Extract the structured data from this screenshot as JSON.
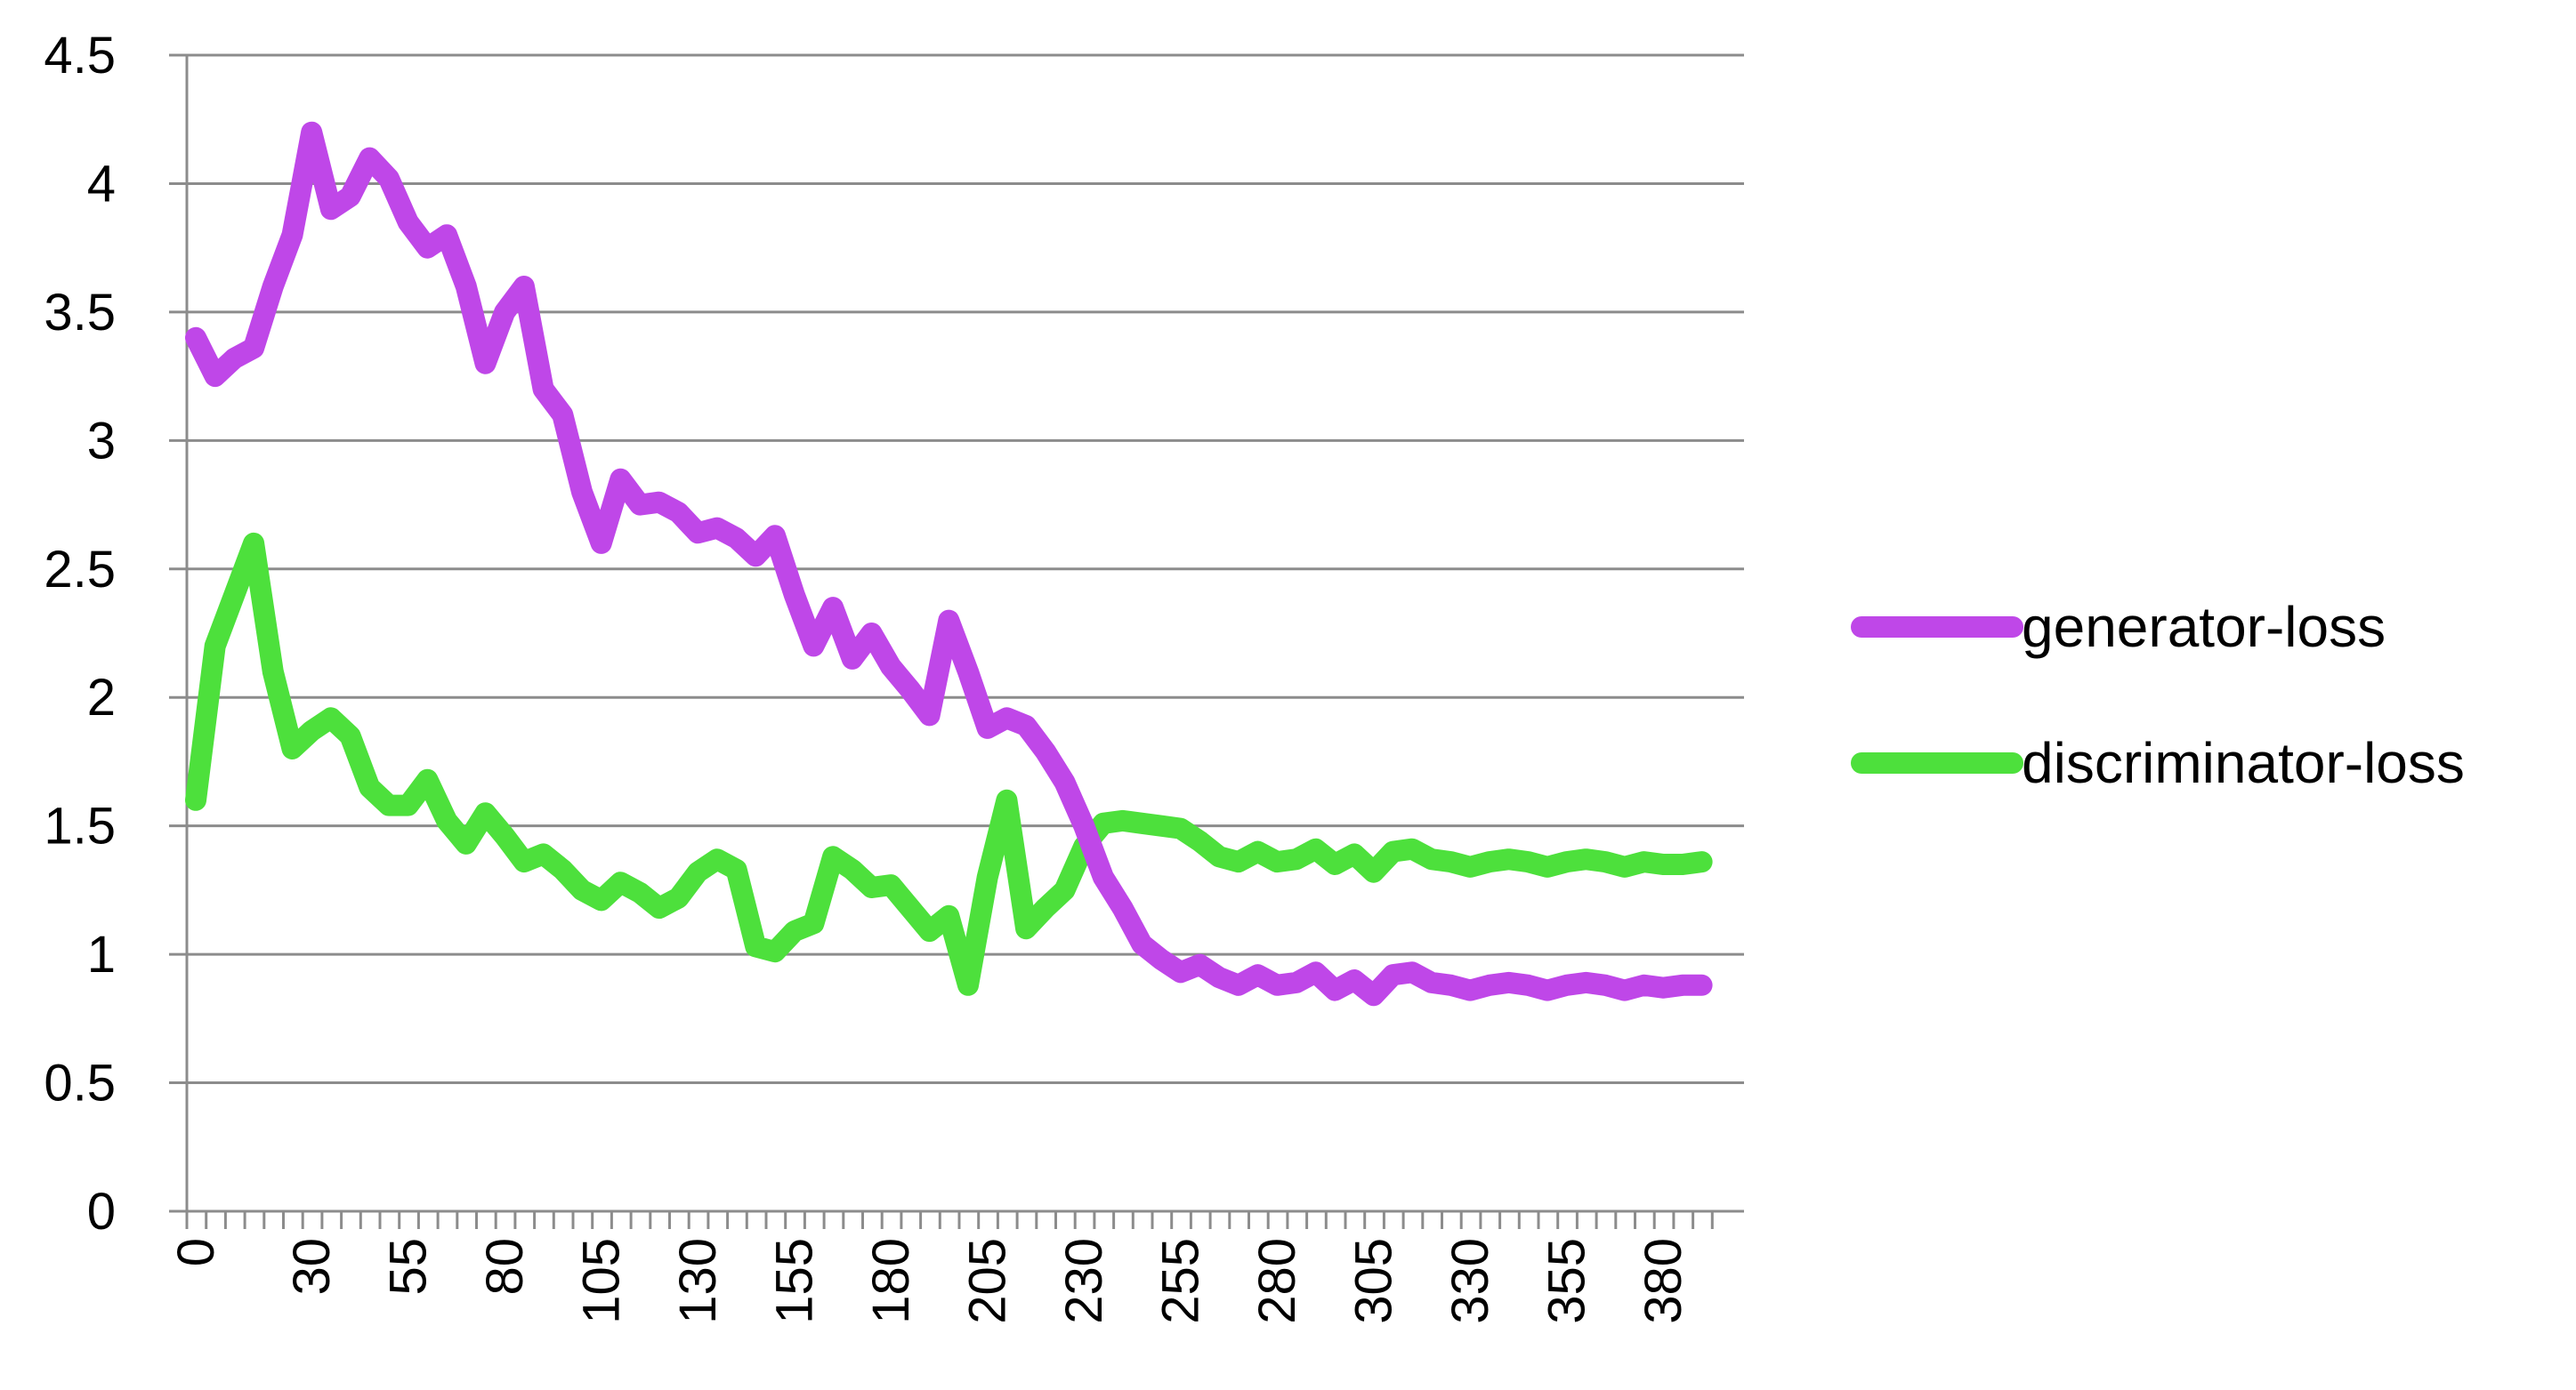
{
  "chart_data": {
    "type": "line",
    "title": "",
    "xlabel": "",
    "ylabel": "",
    "ylim": [
      0,
      4.5
    ],
    "y_ticks": [
      "0",
      "0.5",
      "1",
      "1.5",
      "2",
      "2.5",
      "3",
      "3.5",
      "4",
      "4.5"
    ],
    "x_tick_labels": [
      "0",
      "30",
      "55",
      "80",
      "105",
      "130",
      "155",
      "180",
      "205",
      "230",
      "255",
      "280",
      "305",
      "330",
      "355",
      "380"
    ],
    "grid": "horizontal",
    "legend_position": "right",
    "x": [
      0,
      5,
      10,
      15,
      20,
      25,
      30,
      35,
      40,
      45,
      50,
      55,
      60,
      65,
      70,
      75,
      80,
      85,
      90,
      95,
      100,
      105,
      110,
      115,
      120,
      125,
      130,
      135,
      140,
      145,
      150,
      155,
      160,
      165,
      170,
      175,
      180,
      185,
      190,
      195,
      200,
      205,
      210,
      215,
      220,
      225,
      230,
      235,
      240,
      245,
      250,
      255,
      260,
      265,
      270,
      275,
      280,
      285,
      290,
      295,
      300,
      305,
      310,
      315,
      320,
      325,
      330,
      335,
      340,
      345,
      350,
      355,
      360,
      365,
      370,
      375,
      380,
      385,
      390
    ],
    "series": [
      {
        "name": "generator-loss",
        "color": "#bf47e8",
        "values": [
          3.4,
          3.25,
          3.32,
          3.36,
          3.6,
          3.8,
          4.2,
          3.9,
          3.95,
          4.1,
          4.02,
          3.85,
          3.75,
          3.8,
          3.6,
          3.3,
          3.5,
          3.6,
          3.2,
          3.1,
          2.8,
          2.6,
          2.85,
          2.75,
          2.76,
          2.72,
          2.64,
          2.66,
          2.62,
          2.55,
          2.63,
          2.4,
          2.2,
          2.35,
          2.15,
          2.25,
          2.12,
          2.03,
          1.93,
          2.3,
          2.1,
          1.88,
          1.92,
          1.89,
          1.79,
          1.67,
          1.5,
          1.3,
          1.18,
          1.04,
          0.98,
          0.93,
          0.96,
          0.91,
          0.88,
          0.92,
          0.88,
          0.89,
          0.93,
          0.86,
          0.9,
          0.84,
          0.92,
          0.93,
          0.89,
          0.88,
          0.86,
          0.88,
          0.89,
          0.88,
          0.86,
          0.88,
          0.89,
          0.88,
          0.86,
          0.88,
          0.87,
          0.88,
          0.88
        ]
      },
      {
        "name": "discriminator-loss",
        "color": "#4de03c",
        "values": [
          1.6,
          2.2,
          2.4,
          2.6,
          2.1,
          1.8,
          1.87,
          1.92,
          1.85,
          1.65,
          1.58,
          1.58,
          1.68,
          1.52,
          1.43,
          1.55,
          1.46,
          1.36,
          1.39,
          1.33,
          1.25,
          1.21,
          1.28,
          1.24,
          1.18,
          1.22,
          1.32,
          1.37,
          1.33,
          1.03,
          1.01,
          1.09,
          1.12,
          1.38,
          1.33,
          1.26,
          1.27,
          1.18,
          1.09,
          1.15,
          0.88,
          1.3,
          1.6,
          1.1,
          1.18,
          1.25,
          1.42,
          1.51,
          1.52,
          1.51,
          1.5,
          1.49,
          1.44,
          1.38,
          1.36,
          1.4,
          1.36,
          1.37,
          1.41,
          1.35,
          1.39,
          1.32,
          1.4,
          1.41,
          1.37,
          1.36,
          1.34,
          1.36,
          1.37,
          1.36,
          1.34,
          1.36,
          1.37,
          1.36,
          1.34,
          1.36,
          1.35,
          1.35,
          1.36
        ]
      }
    ]
  }
}
